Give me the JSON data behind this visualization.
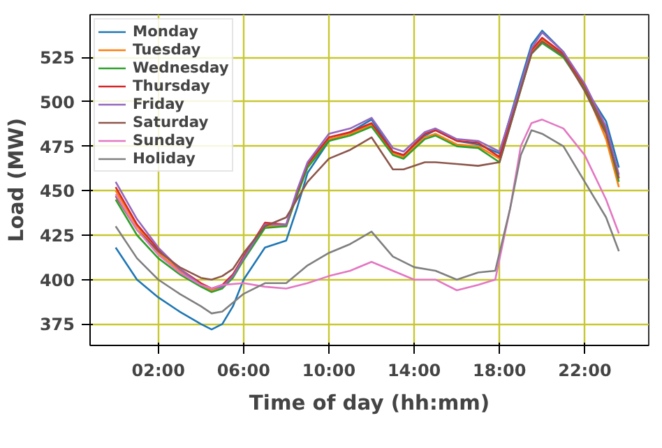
{
  "chart_data": {
    "type": "line",
    "xlabel": "Time of day (hh:mm)",
    "ylabel": "Load (MW)",
    "xlim": [
      -1.2,
      25.0
    ],
    "ylim": [
      363,
      549
    ],
    "xticks": [
      {
        "value": 2,
        "label": "02:00"
      },
      {
        "value": 6,
        "label": "06:00"
      },
      {
        "value": 10,
        "label": "10:00"
      },
      {
        "value": 14,
        "label": "14:00"
      },
      {
        "value": 18,
        "label": "18:00"
      },
      {
        "value": 22,
        "label": "22:00"
      }
    ],
    "yticks": [
      375,
      400,
      425,
      450,
      475,
      500,
      525
    ],
    "grid": true,
    "legend": "top left",
    "line_style": "solid",
    "marker": "none",
    "x": [
      0,
      1,
      2,
      3,
      4,
      4.5,
      5,
      5.5,
      6,
      7,
      8,
      8.5,
      9,
      10,
      11,
      12,
      13,
      13.5,
      14.5,
      15,
      16,
      17,
      18,
      19,
      19.5,
      20,
      21,
      22,
      23,
      23.6
    ],
    "series": [
      {
        "name": "Monday",
        "color": "#1f77b4",
        "values": [
          418,
          400,
          390,
          382,
          375,
          372,
          375,
          385,
          400,
          418,
          422,
          440,
          460,
          478,
          483,
          490,
          472,
          470,
          481,
          484,
          478,
          476,
          471,
          512,
          532,
          540,
          528,
          508,
          489,
          463
        ]
      },
      {
        "name": "Tuesday",
        "color": "#ff7f0e",
        "values": [
          450,
          430,
          415,
          405,
          397,
          394,
          396,
          402,
          412,
          430,
          430,
          448,
          464,
          479,
          482,
          487,
          471,
          469,
          480,
          482,
          476,
          475,
          468,
          508,
          528,
          535,
          526,
          508,
          479,
          452
        ]
      },
      {
        "name": "Wednesday",
        "color": "#2ca02c",
        "values": [
          445,
          425,
          412,
          403,
          396,
          393,
          395,
          401,
          411,
          429,
          430,
          447,
          463,
          478,
          481,
          486,
          470,
          468,
          479,
          481,
          475,
          474,
          466,
          507,
          527,
          533,
          525,
          507,
          483,
          455
        ]
      },
      {
        "name": "Thursday",
        "color": "#d62728",
        "values": [
          452,
          431,
          417,
          406,
          398,
          395,
          397,
          403,
          413,
          432,
          431,
          449,
          465,
          480,
          483,
          488,
          472,
          470,
          482,
          484,
          478,
          477,
          469,
          509,
          529,
          536,
          527,
          509,
          485,
          457
        ]
      },
      {
        "name": "Friday",
        "color": "#9467bd",
        "values": [
          455,
          434,
          418,
          406,
          397,
          395,
          396,
          402,
          412,
          431,
          431,
          450,
          466,
          482,
          485,
          491,
          474,
          472,
          483,
          485,
          479,
          478,
          472,
          510,
          530,
          539,
          528,
          510,
          486,
          459
        ]
      },
      {
        "name": "Saturday",
        "color": "#8c564b",
        "values": [
          447,
          428,
          416,
          407,
          401,
          400,
          402,
          406,
          415,
          430,
          435,
          445,
          455,
          468,
          473,
          480,
          462,
          462,
          466,
          466,
          465,
          464,
          466,
          507,
          527,
          534,
          526,
          506,
          482,
          457
        ]
      },
      {
        "name": "Sunday",
        "color": "#e377c2",
        "x": [
          0,
          1,
          2,
          3,
          4,
          4.5,
          5,
          6,
          7,
          8,
          9,
          10,
          11,
          12,
          13,
          14,
          15,
          16,
          17,
          17.8,
          18.5,
          19,
          19.5,
          20,
          21,
          22,
          23,
          23.6
        ],
        "values": [
          448,
          428,
          414,
          404,
          397,
          395,
          397,
          398,
          396,
          395,
          398,
          402,
          405,
          410,
          405,
          400,
          400,
          394,
          397,
          400,
          440,
          475,
          488,
          490,
          485,
          470,
          445,
          426
        ]
      },
      {
        "name": "Holiday",
        "color": "#7f7f7f",
        "x": [
          0,
          1,
          2,
          3,
          4,
          4.5,
          5,
          6,
          7,
          8,
          9,
          10,
          11,
          12,
          13,
          14,
          15,
          16,
          17,
          17.8,
          18.5,
          19,
          19.5,
          20,
          21,
          22,
          23,
          23.6
        ],
        "values": [
          430,
          412,
          400,
          392,
          385,
          381,
          382,
          392,
          398,
          398,
          408,
          415,
          420,
          427,
          413,
          407,
          405,
          400,
          404,
          405,
          440,
          470,
          484,
          482,
          475,
          455,
          435,
          416
        ]
      }
    ]
  }
}
